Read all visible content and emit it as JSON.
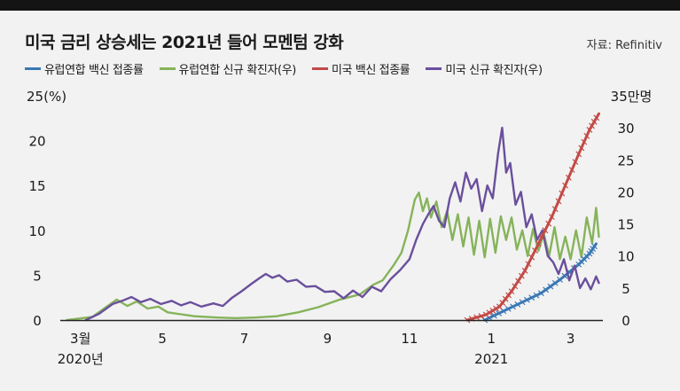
{
  "title": "미국 금리 상승세는 2021년 들어 모멘텀 강화",
  "source": "자료: Refinitiv",
  "colors": {
    "eu_vax": "#3a78b5",
    "eu_cases": "#86b35a",
    "us_vax": "#c24a46",
    "us_cases": "#6a4f9c",
    "zero_line": "#222222",
    "background": "#f2f2f2"
  },
  "legend": [
    {
      "label": "유럽연합 백신 접종률",
      "color": "#3a78b5"
    },
    {
      "label": "유럽연합 신규 확진자(우)",
      "color": "#86b35a"
    },
    {
      "label": "미국 백신 접종률",
      "color": "#c24a46"
    },
    {
      "label": "미국 신규 확진자(우)",
      "color": "#6a4f9c"
    }
  ],
  "chart_data": {
    "type": "line",
    "title": "미국 금리 상승세는 2021년 들어 모멘텀 강화",
    "x_ticks": [
      {
        "value": "2020-03",
        "label": "3월",
        "sublabel": "2020년"
      },
      {
        "value": "2020-05",
        "label": "5"
      },
      {
        "value": "2020-07",
        "label": "7"
      },
      {
        "value": "2020-09",
        "label": "9"
      },
      {
        "value": "2020-11",
        "label": "11"
      },
      {
        "value": "2021-01",
        "label": "1",
        "sublabel": "2021"
      },
      {
        "value": "2021-03",
        "label": "3"
      }
    ],
    "y_left": {
      "unit_label": "25(%)",
      "ticks": [
        "0",
        "5",
        "10",
        "15",
        "20"
      ],
      "range": [
        0,
        25
      ]
    },
    "y_right": {
      "unit_label": "35만명",
      "ticks": [
        "0",
        "5",
        "10",
        "15",
        "20",
        "25",
        "30"
      ],
      "range": [
        0,
        35
      ]
    },
    "series": [
      {
        "name": "유럽연합 백신 접종률",
        "axis": "left",
        "color": "#3a78b5",
        "points": [
          [
            "2020-12-27",
            0
          ],
          [
            "2021-01-10",
            1.0
          ],
          [
            "2021-01-24",
            2.0
          ],
          [
            "2021-02-07",
            3.0
          ],
          [
            "2021-02-21",
            4.5
          ],
          [
            "2021-03-07",
            6.2
          ],
          [
            "2021-03-15",
            7.4
          ],
          [
            "2021-03-20",
            8.5
          ]
        ]
      },
      {
        "name": "유럽연합 신규 확진자(우)",
        "axis": "right",
        "color": "#86b35a",
        "points": [
          [
            "2020-02-20",
            0
          ],
          [
            "2020-03-10",
            0.5
          ],
          [
            "2020-03-20",
            2.0
          ],
          [
            "2020-03-28",
            3.2
          ],
          [
            "2020-04-05",
            2.2
          ],
          [
            "2020-04-12",
            2.9
          ],
          [
            "2020-04-20",
            1.8
          ],
          [
            "2020-04-28",
            2.1
          ],
          [
            "2020-05-05",
            1.2
          ],
          [
            "2020-05-15",
            0.9
          ],
          [
            "2020-05-25",
            0.6
          ],
          [
            "2020-06-10",
            0.4
          ],
          [
            "2020-06-25",
            0.3
          ],
          [
            "2020-07-10",
            0.4
          ],
          [
            "2020-07-25",
            0.6
          ],
          [
            "2020-08-10",
            1.2
          ],
          [
            "2020-08-25",
            2.0
          ],
          [
            "2020-09-10",
            3.2
          ],
          [
            "2020-09-25",
            4.0
          ],
          [
            "2020-10-05",
            5.5
          ],
          [
            "2020-10-12",
            6.2
          ],
          [
            "2020-10-20",
            8.5
          ],
          [
            "2020-10-26",
            10.5
          ],
          [
            "2020-10-31",
            14.0
          ],
          [
            "2020-11-05",
            18.8
          ],
          [
            "2020-11-08",
            19.9
          ],
          [
            "2020-11-11",
            17.0
          ],
          [
            "2020-11-14",
            19.0
          ],
          [
            "2020-11-17",
            16.0
          ],
          [
            "2020-11-21",
            18.5
          ],
          [
            "2020-11-25",
            14.5
          ],
          [
            "2020-11-29",
            17.0
          ],
          [
            "2020-12-03",
            12.5
          ],
          [
            "2020-12-07",
            16.5
          ],
          [
            "2020-12-11",
            11.5
          ],
          [
            "2020-12-15",
            16.0
          ],
          [
            "2020-12-19",
            10.2
          ],
          [
            "2020-12-23",
            15.5
          ],
          [
            "2020-12-27",
            9.8
          ],
          [
            "2020-12-31",
            15.8
          ],
          [
            "2021-01-04",
            10.5
          ],
          [
            "2021-01-08",
            16.2
          ],
          [
            "2021-01-12",
            12.5
          ],
          [
            "2021-01-16",
            16.0
          ],
          [
            "2021-01-20",
            11.0
          ],
          [
            "2021-01-24",
            14.0
          ],
          [
            "2021-01-28",
            10.0
          ],
          [
            "2021-02-01",
            14.2
          ],
          [
            "2021-02-05",
            10.8
          ],
          [
            "2021-02-09",
            13.5
          ],
          [
            "2021-02-13",
            10.0
          ],
          [
            "2021-02-17",
            14.5
          ],
          [
            "2021-02-21",
            9.5
          ],
          [
            "2021-02-25",
            13.0
          ],
          [
            "2021-03-01",
            9.5
          ],
          [
            "2021-03-05",
            14.0
          ],
          [
            "2021-03-09",
            9.8
          ],
          [
            "2021-03-13",
            16.0
          ],
          [
            "2021-03-17",
            12.0
          ],
          [
            "2021-03-20",
            17.5
          ],
          [
            "2021-03-22",
            13.0
          ]
        ]
      },
      {
        "name": "미국 백신 접종률",
        "axis": "left",
        "color": "#c24a46",
        "points": [
          [
            "2020-12-14",
            0
          ],
          [
            "2020-12-28",
            0.6
          ],
          [
            "2021-01-07",
            1.5
          ],
          [
            "2021-01-16",
            3.2
          ],
          [
            "2021-01-26",
            5.5
          ],
          [
            "2021-02-05",
            8.5
          ],
          [
            "2021-02-15",
            11.5
          ],
          [
            "2021-02-25",
            15.0
          ],
          [
            "2021-03-07",
            18.5
          ],
          [
            "2021-03-15",
            21.2
          ],
          [
            "2021-03-22",
            23.0
          ]
        ]
      },
      {
        "name": "미국 신규 확진자(우)",
        "axis": "right",
        "color": "#6a4f9c",
        "points": [
          [
            "2020-03-05",
            0
          ],
          [
            "2020-03-15",
            1.0
          ],
          [
            "2020-03-25",
            2.5
          ],
          [
            "2020-04-01",
            3.0
          ],
          [
            "2020-04-08",
            3.6
          ],
          [
            "2020-04-15",
            2.8
          ],
          [
            "2020-04-22",
            3.3
          ],
          [
            "2020-04-30",
            2.5
          ],
          [
            "2020-05-08",
            3.0
          ],
          [
            "2020-05-15",
            2.3
          ],
          [
            "2020-05-22",
            2.8
          ],
          [
            "2020-05-30",
            2.1
          ],
          [
            "2020-06-08",
            2.6
          ],
          [
            "2020-06-15",
            2.2
          ],
          [
            "2020-06-22",
            3.5
          ],
          [
            "2020-06-29",
            4.5
          ],
          [
            "2020-07-06",
            5.6
          ],
          [
            "2020-07-12",
            6.5
          ],
          [
            "2020-07-17",
            7.2
          ],
          [
            "2020-07-22",
            6.6
          ],
          [
            "2020-07-27",
            7.0
          ],
          [
            "2020-08-02",
            6.0
          ],
          [
            "2020-08-09",
            6.3
          ],
          [
            "2020-08-16",
            5.2
          ],
          [
            "2020-08-23",
            5.3
          ],
          [
            "2020-08-30",
            4.4
          ],
          [
            "2020-09-06",
            4.5
          ],
          [
            "2020-09-13",
            3.4
          ],
          [
            "2020-09-20",
            4.6
          ],
          [
            "2020-09-27",
            3.6
          ],
          [
            "2020-10-04",
            5.2
          ],
          [
            "2020-10-11",
            4.5
          ],
          [
            "2020-10-18",
            6.4
          ],
          [
            "2020-10-25",
            7.8
          ],
          [
            "2020-11-01",
            9.5
          ],
          [
            "2020-11-06",
            12.5
          ],
          [
            "2020-11-11",
            15.0
          ],
          [
            "2020-11-15",
            16.5
          ],
          [
            "2020-11-19",
            17.8
          ],
          [
            "2020-11-23",
            15.5
          ],
          [
            "2020-11-27",
            14.5
          ],
          [
            "2020-12-01",
            19.0
          ],
          [
            "2020-12-05",
            21.5
          ],
          [
            "2020-12-09",
            18.5
          ],
          [
            "2020-12-13",
            23.0
          ],
          [
            "2020-12-17",
            20.5
          ],
          [
            "2020-12-21",
            22.0
          ],
          [
            "2020-12-25",
            17.0
          ],
          [
            "2020-12-29",
            21.0
          ],
          [
            "2021-01-02",
            19.0
          ],
          [
            "2021-01-06",
            26.0
          ],
          [
            "2021-01-09",
            30.0
          ],
          [
            "2021-01-12",
            23.0
          ],
          [
            "2021-01-15",
            24.5
          ],
          [
            "2021-01-19",
            18.0
          ],
          [
            "2021-01-23",
            20.0
          ],
          [
            "2021-01-27",
            14.5
          ],
          [
            "2021-01-31",
            16.5
          ],
          [
            "2021-02-04",
            12.5
          ],
          [
            "2021-02-08",
            14.0
          ],
          [
            "2021-02-12",
            10.0
          ],
          [
            "2021-02-16",
            9.0
          ],
          [
            "2021-02-20",
            7.2
          ],
          [
            "2021-02-24",
            9.5
          ],
          [
            "2021-02-28",
            6.2
          ],
          [
            "2021-03-04",
            8.5
          ],
          [
            "2021-03-08",
            5.0
          ],
          [
            "2021-03-12",
            6.5
          ],
          [
            "2021-03-16",
            4.8
          ],
          [
            "2021-03-20",
            6.8
          ],
          [
            "2021-03-22",
            5.8
          ]
        ]
      }
    ]
  }
}
